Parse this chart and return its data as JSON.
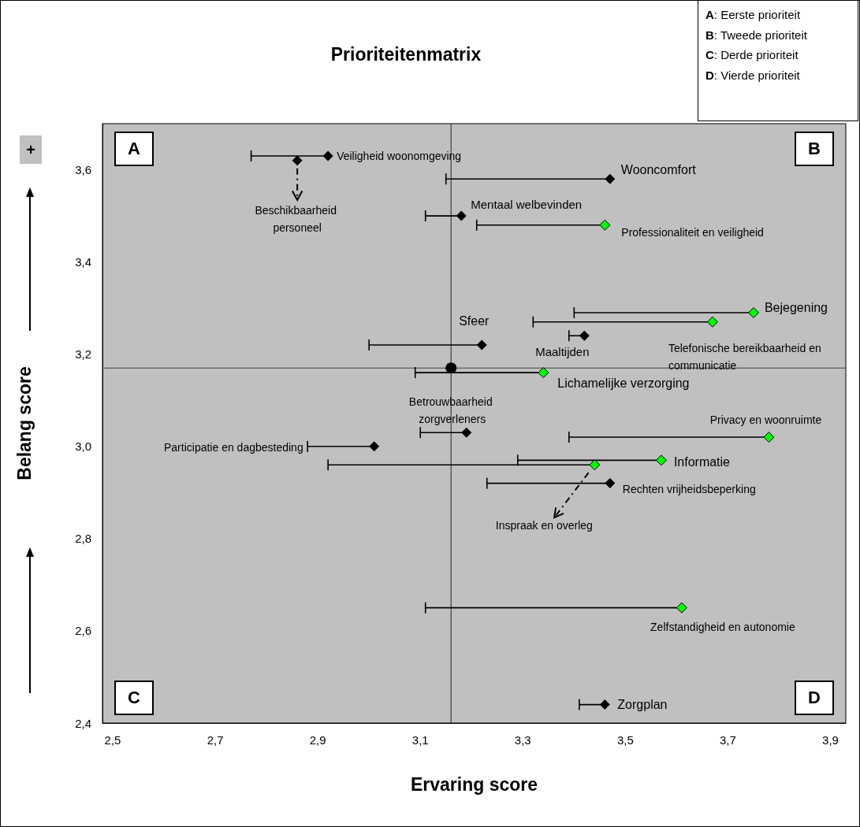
{
  "chart_data": {
    "type": "scatter",
    "title": "Prioriteitenmatrix",
    "xlabel": "Ervaring score",
    "ylabel": "Belang score",
    "xlim": [
      2.48,
      3.93
    ],
    "ylim": [
      2.4,
      3.7
    ],
    "xticks": [
      {
        "value": 2.5,
        "label": "2,5"
      },
      {
        "value": 2.7,
        "label": "2,7"
      },
      {
        "value": 2.9,
        "label": "2,9"
      },
      {
        "value": 3.1,
        "label": "3,1"
      },
      {
        "value": 3.3,
        "label": "3,3"
      },
      {
        "value": 3.5,
        "label": "3,5"
      },
      {
        "value": 3.7,
        "label": "3,7"
      },
      {
        "value": 3.9,
        "label": "3,9"
      }
    ],
    "yticks": [
      {
        "value": 2.4,
        "label": "2,4"
      },
      {
        "value": 2.6,
        "label": "2,6"
      },
      {
        "value": 2.8,
        "label": "2,8"
      },
      {
        "value": 3.0,
        "label": "3,0"
      },
      {
        "value": 3.2,
        "label": "3,2"
      },
      {
        "value": 3.4,
        "label": "3,4"
      },
      {
        "value": 3.6,
        "label": "3,6"
      }
    ],
    "series": [
      {
        "color": "#000000",
        "marker": "diamond",
        "x": [
          2.92,
          2.86,
          3.47,
          3.18,
          3.22,
          3.42,
          3.19,
          3.01,
          3.47,
          3.46
        ],
        "values": [
          3.63,
          3.62,
          3.58,
          3.5,
          3.22,
          3.24,
          3.03,
          3.0,
          2.92,
          2.44
        ],
        "xerrors": [
          [
            2.77,
            2.92
          ],
          null,
          [
            3.15,
            3.47
          ],
          [
            3.11,
            3.18
          ],
          [
            3.0,
            3.22
          ],
          [
            3.39,
            3.42
          ],
          [
            3.1,
            3.19
          ],
          [
            2.88,
            3.01
          ],
          [
            3.23,
            3.47
          ],
          [
            3.41,
            3.46
          ]
        ]
      },
      {
        "color": "#00ff00",
        "marker": "diamond",
        "x": [
          3.46,
          3.75,
          3.67,
          3.34,
          3.78,
          3.57,
          3.44,
          3.61
        ],
        "values": [
          3.48,
          3.29,
          3.27,
          3.16,
          3.02,
          2.97,
          2.96,
          2.65
        ],
        "xerrors": [
          [
            3.21,
            3.46
          ],
          [
            3.4,
            3.75
          ],
          [
            3.32,
            3.67
          ],
          [
            3.09,
            3.34
          ],
          [
            3.39,
            3.78
          ],
          [
            3.29,
            3.57
          ],
          [
            2.92,
            3.44
          ],
          [
            3.11,
            3.61
          ]
        ]
      },
      {
        "color": "#000000",
        "marker": "circle",
        "x": [
          3.16
        ],
        "values": [
          3.17
        ]
      }
    ],
    "ref_lines": [
      {
        "axis": "x",
        "value": 3.16,
        "color": "#404040"
      },
      {
        "axis": "y",
        "value": 3.17,
        "color": "#404040"
      }
    ],
    "annotations": [
      "A: Eerste prioriteit",
      "B: Tweede prioriteit",
      "C: Derde prioriteit",
      "D: Vierde prioriteit",
      "A",
      "B",
      "C",
      "D",
      "+",
      "Beschikbaarheid personeel",
      "Participatie en dagbesteding",
      "Inspraak en overleg",
      {
        "text": "Veiligheid woonomgeving",
        "x": 2.92,
        "y": 3.63
      },
      {
        "text": "Wooncomfort",
        "x": 3.47,
        "y": 3.58
      },
      {
        "text": "Mentaal welbevinden",
        "x": 3.18,
        "y": 3.5
      },
      {
        "text": "Sfeer",
        "x": 3.22,
        "y": 3.22
      },
      {
        "text": "Maaltijden",
        "x": 3.42,
        "y": 3.24
      },
      {
        "text": "Betrouwbaarheid zorgverleners",
        "x": 3.19,
        "y": 3.03
      },
      {
        "text": "Rechten vrijheidsbeperking",
        "x": 3.47,
        "y": 2.92
      },
      {
        "text": "Zorgplan",
        "x": 3.46,
        "y": 2.44
      },
      {
        "text": "Professionaliteit en veiligheid",
        "x": 3.46,
        "y": 3.48
      },
      {
        "text": "Bejegening",
        "x": 3.75,
        "y": 3.29
      },
      {
        "text": "Telefonische bereikbaarheid en communicatie",
        "x": 3.67,
        "y": 3.27
      },
      {
        "text": "Lichamelijke verzorging",
        "x": 3.34,
        "y": 3.16
      },
      {
        "text": "Privacy en woonruimte",
        "x": 3.78,
        "y": 3.02
      },
      {
        "text": "Informatie",
        "x": 3.57,
        "y": 2.97
      },
      {
        "text": "Zelfstandigheid en autonomie",
        "x": 3.61,
        "y": 2.65
      }
    ]
  }
}
